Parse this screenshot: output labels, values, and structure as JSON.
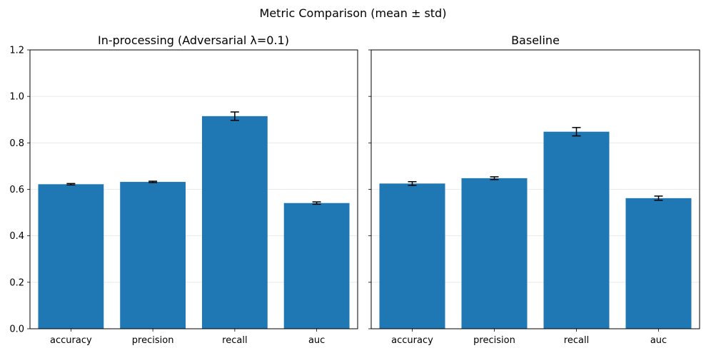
{
  "figure": {
    "title": "Metric Comparison (mean ± std)"
  },
  "colors": {
    "bar": "#1f77b4",
    "error_bar": "#000000",
    "grid": "#e6e6e6",
    "axis": "#000000",
    "background": "#ffffff"
  },
  "chart_data": [
    {
      "type": "bar",
      "title": "In-processing (Adversarial λ=0.1)",
      "categories": [
        "accuracy",
        "precision",
        "recall",
        "auc"
      ],
      "values": [
        0.622,
        0.632,
        0.915,
        0.541
      ],
      "errors": [
        0.003,
        0.003,
        0.018,
        0.005
      ],
      "ylim": [
        0,
        1.2
      ],
      "yticks": [
        0.0,
        0.2,
        0.4,
        0.6,
        0.8,
        1.0,
        1.2
      ],
      "ytick_labels": [
        "0.0",
        "0.2",
        "0.4",
        "0.6",
        "0.8",
        "1.0",
        "1.2"
      ],
      "show_ytick_labels": true,
      "grid": "y",
      "xlabel": "",
      "ylabel": ""
    },
    {
      "type": "bar",
      "title": "Baseline",
      "categories": [
        "accuracy",
        "precision",
        "recall",
        "auc"
      ],
      "values": [
        0.625,
        0.648,
        0.848,
        0.562
      ],
      "errors": [
        0.008,
        0.006,
        0.018,
        0.009
      ],
      "ylim": [
        0,
        1.2
      ],
      "yticks": [
        0.0,
        0.2,
        0.4,
        0.6,
        0.8,
        1.0,
        1.2
      ],
      "ytick_labels": [
        "",
        "",
        "",
        "",
        "",
        "",
        ""
      ],
      "show_ytick_labels": false,
      "grid": "y",
      "xlabel": "",
      "ylabel": ""
    }
  ]
}
